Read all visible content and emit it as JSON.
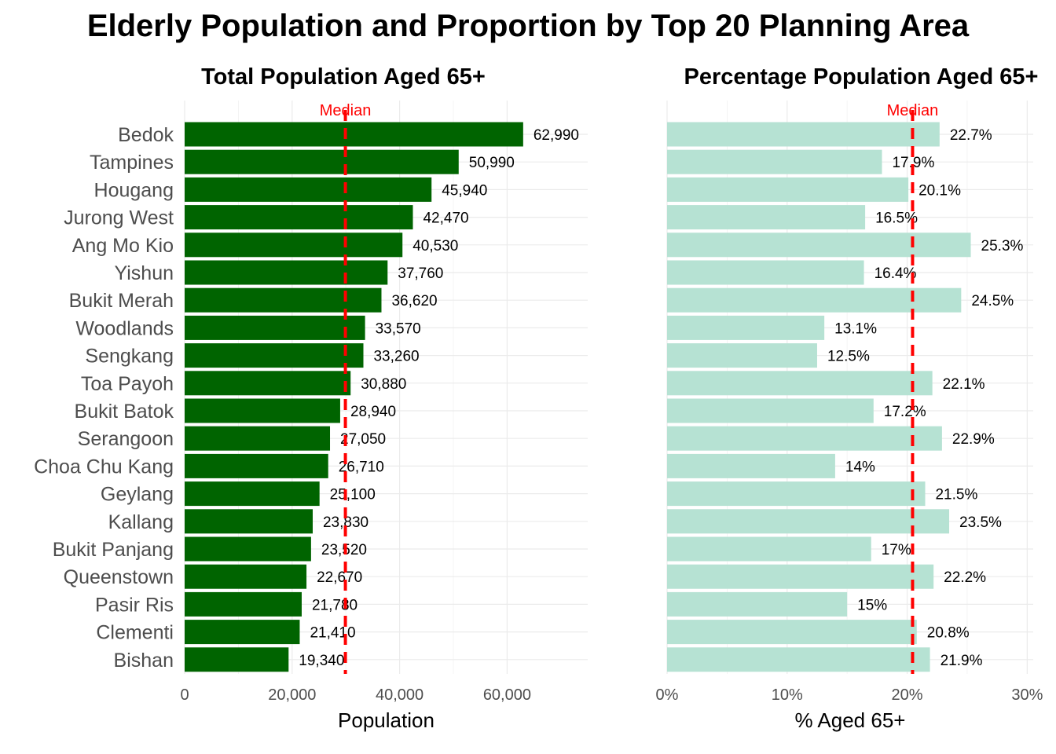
{
  "title": "Elderly Population and Proportion by Top 20 Planning Area",
  "chart_data": [
    {
      "type": "bar",
      "orientation": "horizontal",
      "title": "Total Population Aged 65+",
      "xlabel": "Population",
      "ylabel": "",
      "categories": [
        "Bedok",
        "Tampines",
        "Hougang",
        "Jurong West",
        "Ang Mo Kio",
        "Yishun",
        "Bukit Merah",
        "Woodlands",
        "Sengkang",
        "Toa Payoh",
        "Bukit Batok",
        "Serangoon",
        "Choa Chu Kang",
        "Geylang",
        "Kallang",
        "Bukit Panjang",
        "Queenstown",
        "Pasir Ris",
        "Clementi",
        "Bishan"
      ],
      "values": [
        62990,
        50990,
        45940,
        42470,
        40530,
        37760,
        36620,
        33570,
        33260,
        30880,
        28940,
        27050,
        26710,
        25100,
        23830,
        23520,
        22670,
        21780,
        21410,
        19340
      ],
      "data_labels": [
        "62,990",
        "50,990",
        "45,940",
        "42,470",
        "40,530",
        "37,760",
        "36,620",
        "33,570",
        "33,260",
        "30,880",
        "28,940",
        "27,050",
        "26,710",
        "25,100",
        "23,830",
        "23,520",
        "22,670",
        "21,780",
        "21,410",
        "19,340"
      ],
      "xlim": [
        0,
        75000
      ],
      "ticks": [
        0,
        20000,
        40000,
        60000
      ],
      "tick_labels": [
        "0",
        "20,000",
        "40,000",
        "60,000"
      ],
      "median": 29910,
      "median_label": "Median",
      "bar_color": "#006400",
      "median_color": "#ff0000",
      "grid": true
    },
    {
      "type": "bar",
      "orientation": "horizontal",
      "title": "Percentage Population Aged 65+",
      "xlabel": "% Aged 65+",
      "ylabel": "",
      "categories": [
        "Bedok",
        "Tampines",
        "Hougang",
        "Jurong West",
        "Ang Mo Kio",
        "Yishun",
        "Bukit Merah",
        "Woodlands",
        "Sengkang",
        "Toa Payoh",
        "Bukit Batok",
        "Serangoon",
        "Choa Chu Kang",
        "Geylang",
        "Kallang",
        "Bukit Panjang",
        "Queenstown",
        "Pasir Ris",
        "Clementi",
        "Bishan"
      ],
      "values": [
        22.7,
        17.9,
        20.1,
        16.5,
        25.3,
        16.4,
        24.5,
        13.1,
        12.5,
        22.1,
        17.2,
        22.9,
        14,
        21.5,
        23.5,
        17,
        22.2,
        15,
        20.8,
        21.9
      ],
      "data_labels": [
        "22.7%",
        "17.9%",
        "20.1%",
        "16.5%",
        "25.3%",
        "16.4%",
        "24.5%",
        "13.1%",
        "12.5%",
        "22.1%",
        "17.2%",
        "22.9%",
        "14%",
        "21.5%",
        "23.5%",
        "17%",
        "22.2%",
        "15%",
        "20.8%",
        "21.9%"
      ],
      "xlim": [
        0,
        30.5
      ],
      "ticks": [
        0,
        10,
        20,
        30
      ],
      "tick_labels": [
        "0%",
        "10%",
        "20%",
        "30%"
      ],
      "median": 20.45,
      "median_label": "Median",
      "bar_color": "#b6e2d3",
      "median_color": "#ff0000",
      "grid": true
    }
  ]
}
